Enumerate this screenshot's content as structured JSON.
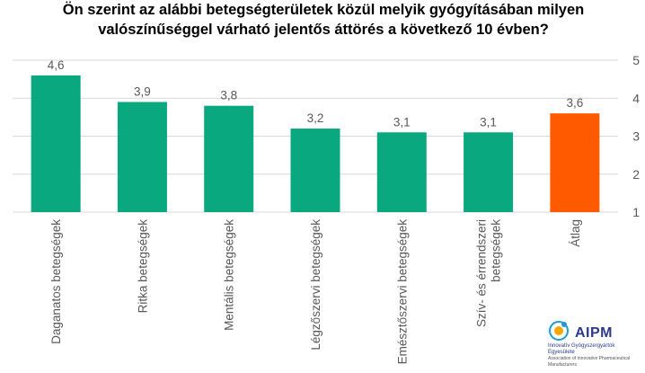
{
  "chart_data": {
    "type": "bar",
    "title": "Ön szerint az alábbi betegségterületek közül melyik gyógyításában milyen valószínűséggel várható jelentős áttörés a következő 10 évben?",
    "categories": [
      "Daganatos betegségek",
      "Ritka betegségek",
      "Mentális betegségek",
      "Légzőszervi betegségek",
      "Emésztőszervi betegségek",
      "Szív- és érrendszeri betegségek",
      "Átlag"
    ],
    "values": [
      4.6,
      3.9,
      3.8,
      3.2,
      3.1,
      3.1,
      3.6
    ],
    "value_labels": [
      "4,6",
      "3,9",
      "3,8",
      "3,2",
      "3,1",
      "3,1",
      "3,6"
    ],
    "bar_colors": [
      "#0aa87e",
      "#0aa87e",
      "#0aa87e",
      "#0aa87e",
      "#0aa87e",
      "#0aa87e",
      "#ff5a00"
    ],
    "ylim": [
      1,
      5
    ],
    "yticks": [
      "1",
      "2",
      "3",
      "4",
      "5"
    ],
    "y_axis_position": "right",
    "grid": true,
    "xlabel": "",
    "ylabel": ""
  },
  "logo": {
    "name": "AIPM",
    "line1": "Innovatív Gyógyszergyártók Egyesülete",
    "line2": "Association of Innovative Pharmaceutical Manufacturers"
  }
}
